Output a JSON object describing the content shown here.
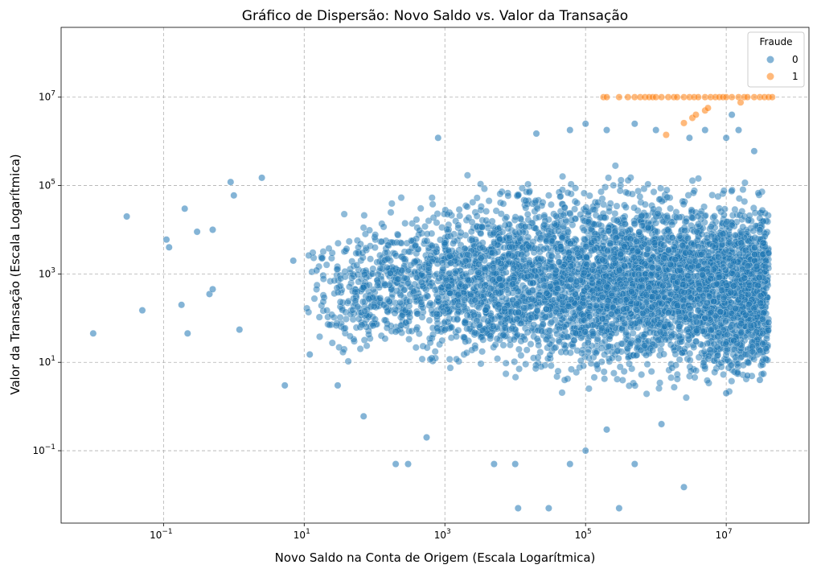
{
  "chart_data": {
    "type": "scatter",
    "title": "Gráfico de Dispersão: Novo Saldo vs. Valor da Transação",
    "xlabel": "Novo Saldo na Conta de Origem (Escala Logarítmica)",
    "ylabel": "Valor da Transação (Escala Logarítmica)",
    "x_scale": "log",
    "y_scale": "log",
    "xlim": [
      0.0035,
      150000000
    ],
    "ylim": [
      0.0023,
      380000000
    ],
    "x_ticks": [
      {
        "value": 0.1,
        "base": "10",
        "exp": "−1"
      },
      {
        "value": 10,
        "base": "10",
        "exp": "1"
      },
      {
        "value": 1000,
        "base": "10",
        "exp": "3"
      },
      {
        "value": 100000,
        "base": "10",
        "exp": "5"
      },
      {
        "value": 10000000,
        "base": "10",
        "exp": "7"
      }
    ],
    "y_ticks": [
      {
        "value": 0.1,
        "base": "10",
        "exp": "−1"
      },
      {
        "value": 10,
        "base": "10",
        "exp": "1"
      },
      {
        "value": 1000,
        "base": "10",
        "exp": "3"
      },
      {
        "value": 100000,
        "base": "10",
        "exp": "5"
      },
      {
        "value": 10000000,
        "base": "10",
        "exp": "7"
      }
    ],
    "grid": true,
    "legend": {
      "title": "Fraude",
      "position": "top-right"
    },
    "series": [
      {
        "name": "0",
        "color": "#1f77b4",
        "dense_region": {
          "note": "very dense cloud of points",
          "x_range": [
            10,
            40000000
          ],
          "y_range": [
            1,
            2000000
          ]
        },
        "points": [
          [
            0.01,
            45
          ],
          [
            0.03,
            20000
          ],
          [
            0.05,
            150
          ],
          [
            0.11,
            6000
          ],
          [
            0.12,
            4000
          ],
          [
            0.18,
            200
          ],
          [
            0.2,
            30000
          ],
          [
            0.22,
            45
          ],
          [
            0.3,
            9000
          ],
          [
            0.45,
            350
          ],
          [
            0.5,
            450
          ],
          [
            0.5,
            10000
          ],
          [
            0.9,
            120000
          ],
          [
            1.0,
            60000
          ],
          [
            1.2,
            55
          ],
          [
            2.5,
            150000
          ],
          [
            5.3,
            3
          ],
          [
            7,
            2000
          ],
          [
            12,
            15
          ],
          [
            15,
            1200
          ],
          [
            30,
            3
          ],
          [
            70,
            0.6
          ],
          [
            200,
            0.05
          ],
          [
            300,
            0.05
          ],
          [
            550,
            0.2
          ],
          [
            5000,
            0.05
          ],
          [
            10000,
            0.05
          ],
          [
            11000,
            0.005
          ],
          [
            30000,
            0.005
          ],
          [
            60000,
            0.05
          ],
          [
            100000,
            0.1
          ],
          [
            200000,
            0.3
          ],
          [
            300000,
            0.005
          ],
          [
            500000,
            0.05
          ],
          [
            2500000,
            0.015
          ],
          [
            1200000,
            0.4
          ],
          [
            10000000,
            2
          ],
          [
            5000000,
            100
          ],
          [
            20000000,
            5
          ],
          [
            30000000,
            4
          ],
          [
            40000000,
            80
          ],
          [
            800,
            1200000
          ],
          [
            20000,
            1500000
          ],
          [
            60000,
            1800000
          ],
          [
            100000,
            2500000
          ],
          [
            200000,
            1800000
          ],
          [
            500000,
            2500000
          ],
          [
            1000000,
            1800000
          ],
          [
            3000000,
            1200000
          ],
          [
            5000000,
            1800000
          ],
          [
            10000000,
            1200000
          ],
          [
            12000000,
            4000000
          ],
          [
            15000000,
            1800000
          ],
          [
            25000000,
            600000
          ],
          [
            30000000,
            10000
          ],
          [
            40000000,
            3000
          ]
        ]
      },
      {
        "name": "1",
        "color": "#ff7f0e",
        "points": [
          [
            180000,
            10000000
          ],
          [
            200000,
            10000000
          ],
          [
            300000,
            10000000
          ],
          [
            400000,
            10000000
          ],
          [
            500000,
            10000000
          ],
          [
            600000,
            10000000
          ],
          [
            700000,
            10000000
          ],
          [
            800000,
            10000000
          ],
          [
            900000,
            10000000
          ],
          [
            1000000,
            10000000
          ],
          [
            1200000,
            10000000
          ],
          [
            1500000,
            10000000
          ],
          [
            1800000,
            10000000
          ],
          [
            2000000,
            10000000
          ],
          [
            2500000,
            10000000
          ],
          [
            3000000,
            10000000
          ],
          [
            3500000,
            10000000
          ],
          [
            4000000,
            10000000
          ],
          [
            5000000,
            10000000
          ],
          [
            6000000,
            10000000
          ],
          [
            7000000,
            10000000
          ],
          [
            8000000,
            10000000
          ],
          [
            9000000,
            10000000
          ],
          [
            10000000,
            10000000
          ],
          [
            12000000,
            10000000
          ],
          [
            15000000,
            10000000
          ],
          [
            18000000,
            10000000
          ],
          [
            20000000,
            10000000
          ],
          [
            25000000,
            10000000
          ],
          [
            30000000,
            10000000
          ],
          [
            35000000,
            10000000
          ],
          [
            40000000,
            10000000
          ],
          [
            45000000,
            10000000
          ],
          [
            1400000,
            1400000
          ],
          [
            2500000,
            2600000
          ],
          [
            3300000,
            3400000
          ],
          [
            3700000,
            4000000
          ],
          [
            5000000,
            5000000
          ],
          [
            5500000,
            5700000
          ],
          [
            16000000,
            7600000
          ]
        ]
      }
    ]
  }
}
